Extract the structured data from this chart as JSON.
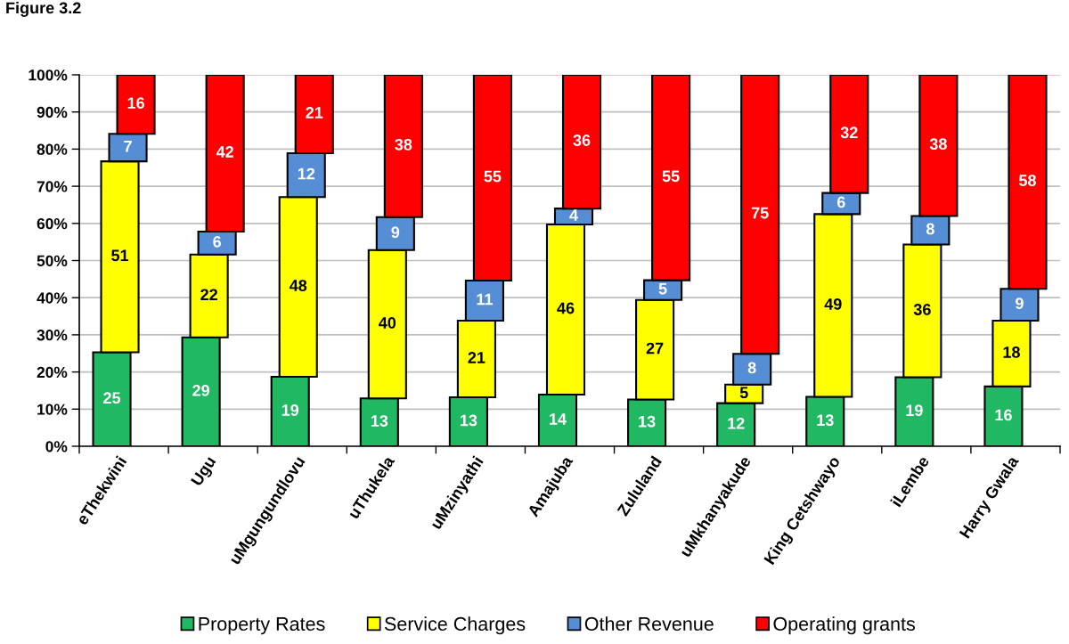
{
  "chart_data": {
    "type": "bar",
    "title": "Figure 3.2",
    "stacked": true,
    "categories": [
      "eThekwini",
      "Ugu",
      "uMgungundlovu",
      "uThukela",
      "uMzinyathi",
      "Amajuba",
      "Zululand",
      "uMkhanyakude",
      "King Cetshwayo",
      "iLembe",
      "Harry Gwala"
    ],
    "series": [
      {
        "name": "Property Rates",
        "color": "#21b864",
        "values": [
          25.3,
          29.3,
          18.7,
          12.9,
          13.2,
          13.9,
          12.6,
          11.6,
          13.3,
          18.6,
          16.1
        ],
        "value_labels": [
          "25",
          "29",
          "19",
          "13",
          "13",
          "14",
          "13",
          "12",
          "13",
          "19",
          "16"
        ]
      },
      {
        "name": "Service Charges",
        "color": "#ffff00",
        "values": [
          51.4,
          22.3,
          48.4,
          39.9,
          20.6,
          45.8,
          26.8,
          5.0,
          49.2,
          35.7,
          17.7
        ],
        "value_labels": [
          "51",
          "22",
          "48",
          "40",
          "21",
          "46",
          "27",
          "5",
          "49",
          "36",
          "18"
        ]
      },
      {
        "name": "Other Revenue",
        "color": "#558ed5",
        "values": [
          7.4,
          6.2,
          11.8,
          8.9,
          10.8,
          4.3,
          5.3,
          8.3,
          5.7,
          7.7,
          8.6
        ],
        "value_labels": [
          "7",
          "6",
          "12",
          "9",
          "11",
          "4",
          "5",
          "8",
          "6",
          "8",
          "9"
        ]
      },
      {
        "name": "Operating grants",
        "color": "#ff0000",
        "values": [
          15.9,
          42.2,
          21.1,
          38.3,
          55.4,
          36.0,
          55.3,
          75.1,
          31.8,
          38.0,
          57.6
        ],
        "value_labels": [
          "16",
          "42",
          "21",
          "38",
          "55",
          "36",
          "55",
          "75",
          "32",
          "38",
          "58"
        ]
      }
    ],
    "ylim": [
      0,
      100
    ],
    "yticks": [
      {
        "value": 0,
        "label": "0%"
      },
      {
        "value": 10,
        "label": "10%"
      },
      {
        "value": 20,
        "label": "20%"
      },
      {
        "value": 30,
        "label": "30%"
      },
      {
        "value": 40,
        "label": "40%"
      },
      {
        "value": 50,
        "label": "50%"
      },
      {
        "value": 60,
        "label": "60%"
      },
      {
        "value": 70,
        "label": "70%"
      },
      {
        "value": 80,
        "label": "80%"
      },
      {
        "value": 90,
        "label": "90%"
      },
      {
        "value": 100,
        "label": "100%"
      }
    ],
    "grid": "y",
    "legend": "bottom"
  }
}
